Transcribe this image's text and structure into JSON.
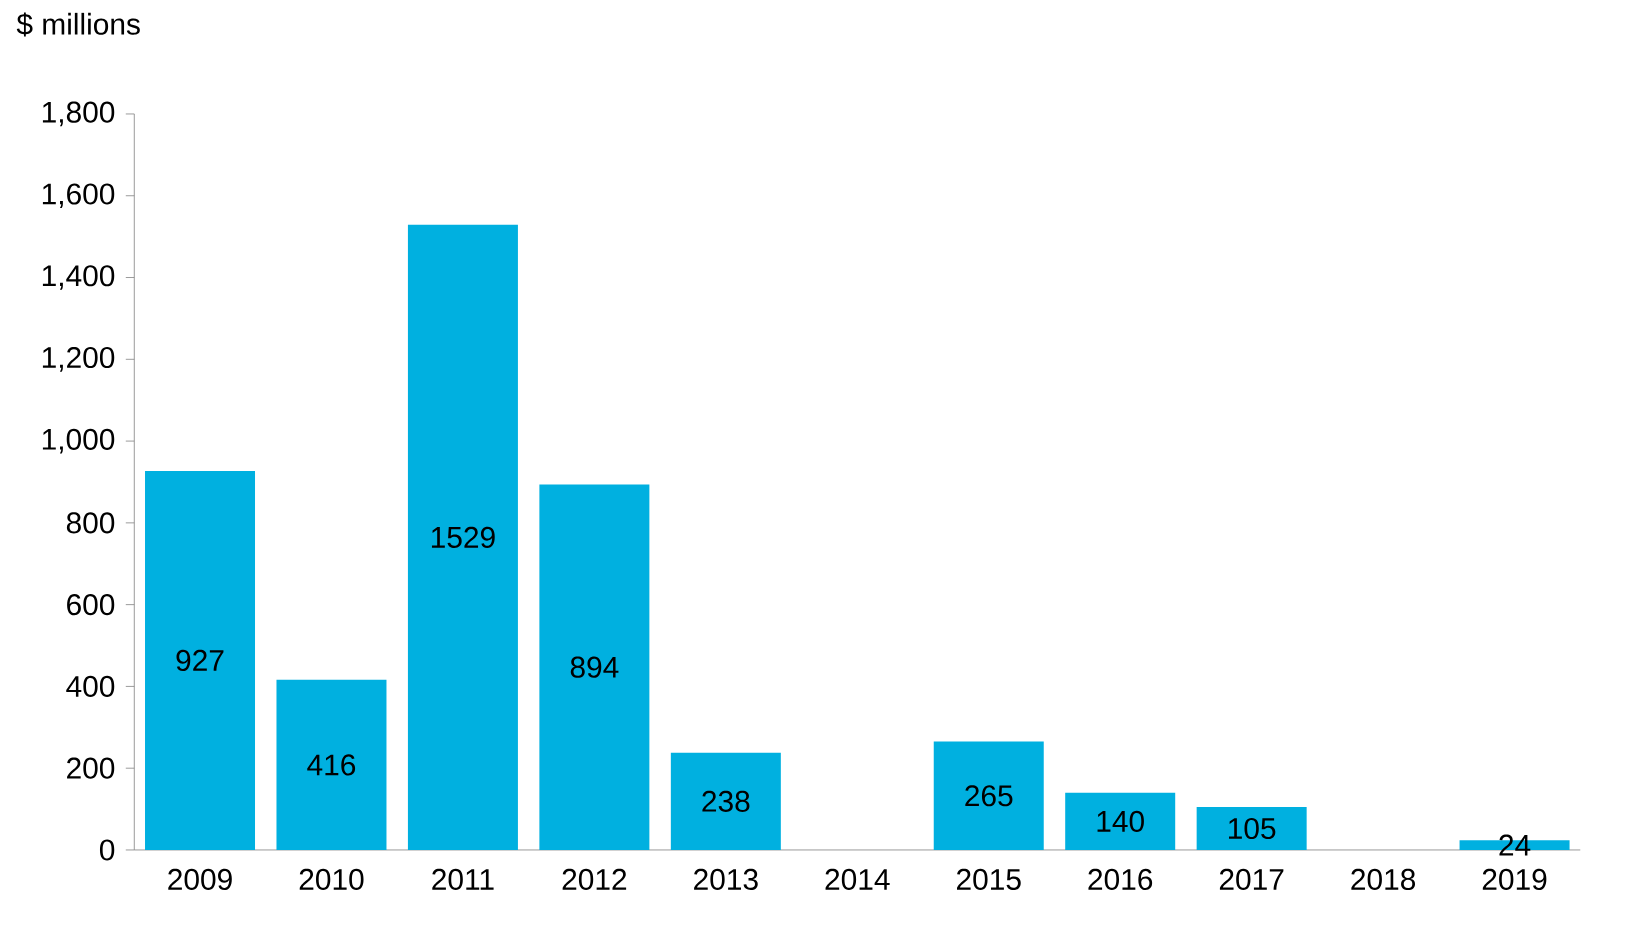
{
  "chart_data": {
    "type": "bar",
    "ylabel": "$ millions",
    "categories": [
      "2009",
      "2010",
      "2011",
      "2012",
      "2013",
      "2014",
      "2015",
      "2016",
      "2017",
      "2018",
      "2019"
    ],
    "values": [
      927,
      416,
      1529,
      894,
      238,
      null,
      265,
      140,
      105,
      null,
      24
    ],
    "color": "#00b0e0",
    "data_labels": true,
    "ylim": [
      0,
      1800
    ],
    "yticks": [
      0,
      {
        "value": 200,
        "label": "200"
      },
      {
        "value": 400,
        "label": "400"
      },
      {
        "value": 600,
        "label": "600"
      },
      {
        "value": 800,
        "label": "800"
      },
      {
        "value": 1000,
        "label": "1,000"
      },
      {
        "value": 1200,
        "label": "1,200"
      },
      {
        "value": 1400,
        "label": "1,400"
      },
      {
        "value": 1600,
        "label": "1,600"
      },
      {
        "value": 1800,
        "label": "1,800"
      }
    ],
    "grid": false
  }
}
